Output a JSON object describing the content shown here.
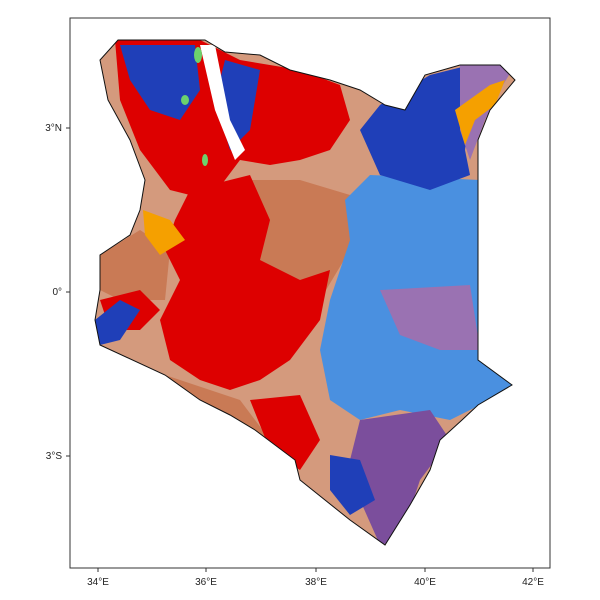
{
  "map": {
    "x_ticks": [
      "34°E",
      "36°E",
      "38°E",
      "40°E",
      "42°E"
    ],
    "y_ticks": [
      "3°N",
      "0°",
      "3°S"
    ],
    "colors": {
      "red": "#dd0000",
      "dark_blue": "#1f3fb8",
      "light_blue": "#4a90e0",
      "tan": "#d49a7d",
      "brown_orange": "#c97a55",
      "purple": "#7b4e9c",
      "lilac": "#9a72b2",
      "orange": "#f5a000",
      "green": "#6cd26c",
      "white": "#ffffff"
    }
  }
}
